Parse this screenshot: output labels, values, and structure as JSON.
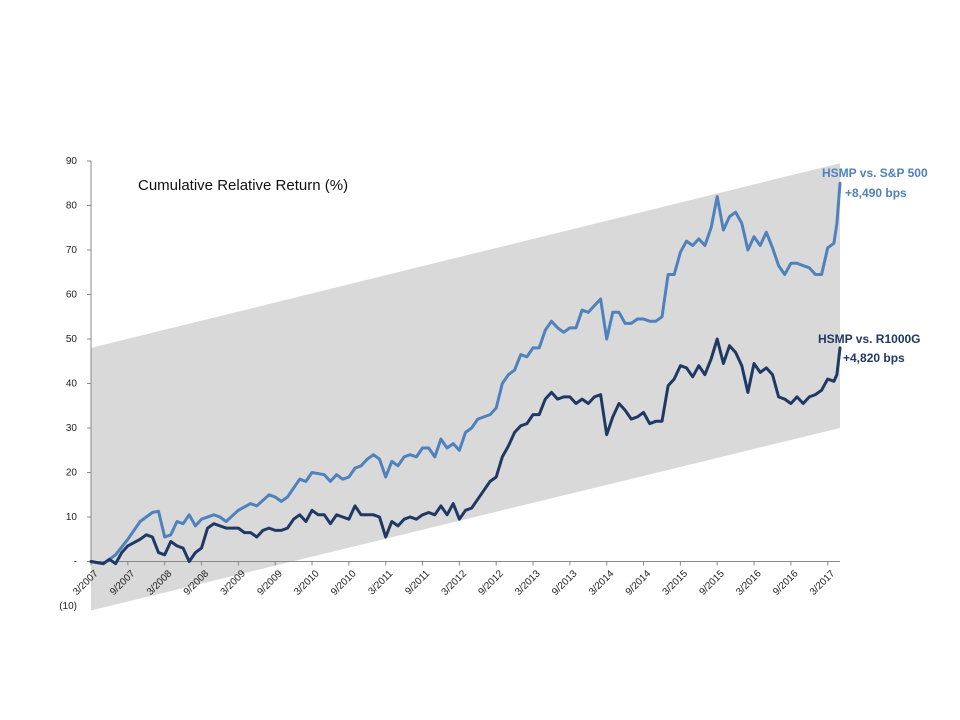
{
  "chart_data": {
    "type": "line",
    "title": "Cumulative Relative Return (%)",
    "xlabel": "",
    "ylabel": "",
    "ylim": [
      -10,
      90
    ],
    "y_ticks": [
      {
        "value": 90,
        "label": "90"
      },
      {
        "value": 80,
        "label": "80"
      },
      {
        "value": 70,
        "label": "70"
      },
      {
        "value": 60,
        "label": "60"
      },
      {
        "value": 50,
        "label": "50"
      },
      {
        "value": 40,
        "label": "40"
      },
      {
        "value": 30,
        "label": "30"
      },
      {
        "value": 20,
        "label": "20"
      },
      {
        "value": 10,
        "label": "10"
      },
      {
        "value": 0,
        "label": "-"
      },
      {
        "value": -10,
        "label": "(10)"
      }
    ],
    "x_range": [
      "3/2007",
      "5/2017"
    ],
    "x_ticks": [
      {
        "date": "3/2007",
        "label": "3/2007"
      },
      {
        "date": "9/2007",
        "label": "9/2007"
      },
      {
        "date": "3/2008",
        "label": "3/2008"
      },
      {
        "date": "9/2008",
        "label": "9/2008"
      },
      {
        "date": "3/2009",
        "label": "3/2009"
      },
      {
        "date": "9/2009",
        "label": "9/2009"
      },
      {
        "date": "3/2010",
        "label": "3/2010"
      },
      {
        "date": "9/2010",
        "label": "9/2010"
      },
      {
        "date": "3/2011",
        "label": "3/2011"
      },
      {
        "date": "9/2011",
        "label": "9/2011"
      },
      {
        "date": "3/2012",
        "label": "3/2012"
      },
      {
        "date": "9/2012",
        "label": "9/2012"
      },
      {
        "date": "3/2013",
        "label": "3/2013"
      },
      {
        "date": "9/2013",
        "label": "9/2013"
      },
      {
        "date": "3/2014",
        "label": "3/2014"
      },
      {
        "date": "9/2014",
        "label": "9/2014"
      },
      {
        "date": "3/2015",
        "label": "3/2015"
      },
      {
        "date": "9/2015",
        "label": "9/2015"
      },
      {
        "date": "3/2016",
        "label": "3/2016"
      },
      {
        "date": "9/2016",
        "label": "9/2016"
      },
      {
        "date": "3/2017",
        "label": "3/2017"
      }
    ],
    "band": {
      "upper": [
        {
          "date": "3/2007",
          "value": 48
        },
        {
          "date": "5/2017",
          "value": 89.5
        }
      ],
      "lower": [
        {
          "date": "3/2007",
          "value": -11
        },
        {
          "date": "5/2017",
          "value": 30
        }
      ],
      "color": "#d9d9d9"
    },
    "series": [
      {
        "name": "HSMP vs. S&P 500",
        "annotation": "+8,490 bps",
        "color": "#4f81bd",
        "points": [
          [
            "3/2007",
            0
          ],
          [
            "5/2007",
            -0.5
          ],
          [
            "7/2007",
            1.5
          ],
          [
            "9/2007",
            5
          ],
          [
            "11/2007",
            9
          ],
          [
            "1/2008",
            11
          ],
          [
            "2/2008",
            11.3
          ],
          [
            "3/2008",
            5.5
          ],
          [
            "4/2008",
            6
          ],
          [
            "5/2008",
            9
          ],
          [
            "6/2008",
            8.5
          ],
          [
            "7/2008",
            10.5
          ],
          [
            "8/2008",
            8
          ],
          [
            "9/2008",
            9.5
          ],
          [
            "11/2008",
            10.5
          ],
          [
            "12/2008",
            10
          ],
          [
            "1/2009",
            9
          ],
          [
            "3/2009",
            11.5
          ],
          [
            "5/2009",
            13
          ],
          [
            "6/2009",
            12.5
          ],
          [
            "8/2009",
            15
          ],
          [
            "9/2009",
            14.5
          ],
          [
            "10/2009",
            13.5
          ],
          [
            "11/2009",
            14.5
          ],
          [
            "1/2010",
            18.5
          ],
          [
            "2/2010",
            18
          ],
          [
            "3/2010",
            20
          ],
          [
            "5/2010",
            19.5
          ],
          [
            "6/2010",
            18
          ],
          [
            "7/2010",
            19.5
          ],
          [
            "8/2010",
            18.5
          ],
          [
            "9/2010",
            19
          ],
          [
            "10/2010",
            21
          ],
          [
            "11/2010",
            21.5
          ],
          [
            "12/2010",
            23
          ],
          [
            "1/2011",
            24
          ],
          [
            "2/2011",
            23
          ],
          [
            "3/2011",
            19
          ],
          [
            "4/2011",
            22.5
          ],
          [
            "5/2011",
            21.5
          ],
          [
            "6/2011",
            23.5
          ],
          [
            "7/2011",
            24
          ],
          [
            "8/2011",
            23.5
          ],
          [
            "9/2011",
            25.5
          ],
          [
            "10/2011",
            25.5
          ],
          [
            "11/2011",
            23.5
          ],
          [
            "12/2011",
            27.5
          ],
          [
            "1/2012",
            25.5
          ],
          [
            "2/2012",
            26.5
          ],
          [
            "3/2012",
            25
          ],
          [
            "4/2012",
            29
          ],
          [
            "5/2012",
            30
          ],
          [
            "6/2012",
            32
          ],
          [
            "7/2012",
            32.5
          ],
          [
            "8/2012",
            33
          ],
          [
            "9/2012",
            34.5
          ],
          [
            "10/2012",
            40
          ],
          [
            "11/2012",
            42
          ],
          [
            "12/2012",
            43
          ],
          [
            "1/2013",
            46.5
          ],
          [
            "2/2013",
            46
          ],
          [
            "3/2013",
            48
          ],
          [
            "4/2013",
            48
          ],
          [
            "5/2013",
            52
          ],
          [
            "6/2013",
            54
          ],
          [
            "7/2013",
            52.5
          ],
          [
            "8/2013",
            51.5
          ],
          [
            "9/2013",
            52.5
          ],
          [
            "10/2013",
            52.5
          ],
          [
            "11/2013",
            56.5
          ],
          [
            "12/2013",
            56
          ],
          [
            "1/2014",
            57.5
          ],
          [
            "2/2014",
            59
          ],
          [
            "3/2014",
            50
          ],
          [
            "4/2014",
            56
          ],
          [
            "5/2014",
            56
          ],
          [
            "6/2014",
            53.5
          ],
          [
            "7/2014",
            53.5
          ],
          [
            "8/2014",
            54.5
          ],
          [
            "9/2014",
            54.5
          ],
          [
            "10/2014",
            54
          ],
          [
            "11/2014",
            54
          ],
          [
            "12/2014",
            55
          ],
          [
            "1/2015",
            64.5
          ],
          [
            "2/2015",
            64.5
          ],
          [
            "3/2015",
            69.5
          ],
          [
            "4/2015",
            72
          ],
          [
            "5/2015",
            71
          ],
          [
            "6/2015",
            72.5
          ],
          [
            "7/2015",
            71
          ],
          [
            "8/2015",
            75
          ],
          [
            "9/2015",
            82
          ],
          [
            "10/2015",
            74.5
          ],
          [
            "11/2015",
            77.5
          ],
          [
            "12/2015",
            78.5
          ],
          [
            "1/2016",
            76
          ],
          [
            "2/2016",
            70
          ],
          [
            "3/2016",
            73
          ],
          [
            "4/2016",
            71
          ],
          [
            "5/2016",
            74
          ],
          [
            "6/2016",
            70.5
          ],
          [
            "7/2016",
            66.5
          ],
          [
            "8/2016",
            64.5
          ],
          [
            "9/2016",
            67
          ],
          [
            "10/2016",
            67
          ],
          [
            "11/2016",
            66.5
          ],
          [
            "12/2016",
            66
          ],
          [
            "1/2017",
            64.5
          ],
          [
            "2/2017",
            64.5
          ],
          [
            "3/2017",
            70.5
          ],
          [
            "4/2017",
            71.5
          ],
          [
            "4.5/2017",
            76
          ],
          [
            "5/2017",
            85
          ]
        ]
      },
      {
        "name": "HSMP vs. R1000G",
        "annotation": "+4,820 bps",
        "color": "#1f3864",
        "points": [
          [
            "3/2007",
            0
          ],
          [
            "5/2007",
            -0.5
          ],
          [
            "6/2007",
            0.5
          ],
          [
            "7/2007",
            -0.5
          ],
          [
            "8/2007",
            2
          ],
          [
            "9/2007",
            3.5
          ],
          [
            "11/2007",
            5
          ],
          [
            "12/2007",
            6
          ],
          [
            "1/2008",
            5.5
          ],
          [
            "2/2008",
            2
          ],
          [
            "3/2008",
            1.5
          ],
          [
            "4/2008",
            4.5
          ],
          [
            "5/2008",
            3.5
          ],
          [
            "6/2008",
            3
          ],
          [
            "7/2008",
            0
          ],
          [
            "8/2008",
            2
          ],
          [
            "9/2008",
            3
          ],
          [
            "10/2008",
            7.5
          ],
          [
            "11/2008",
            8.5
          ],
          [
            "12/2008",
            8
          ],
          [
            "1/2009",
            7.5
          ],
          [
            "2/2009",
            7.5
          ],
          [
            "3/2009",
            7.5
          ],
          [
            "4/2009",
            6.5
          ],
          [
            "5/2009",
            6.5
          ],
          [
            "6/2009",
            5.5
          ],
          [
            "7/2009",
            7
          ],
          [
            "8/2009",
            7.5
          ],
          [
            "9/2009",
            7
          ],
          [
            "10/2009",
            7
          ],
          [
            "11/2009",
            7.5
          ],
          [
            "12/2009",
            9.5
          ],
          [
            "1/2010",
            10.5
          ],
          [
            "2/2010",
            9
          ],
          [
            "3/2010",
            11.5
          ],
          [
            "4/2010",
            10.5
          ],
          [
            "5/2010",
            10.5
          ],
          [
            "6/2010",
            8.5
          ],
          [
            "7/2010",
            10.5
          ],
          [
            "8/2010",
            10
          ],
          [
            "9/2010",
            9.5
          ],
          [
            "10/2010",
            12.5
          ],
          [
            "11/2010",
            10.5
          ],
          [
            "12/2010",
            10.5
          ],
          [
            "1/2011",
            10.5
          ],
          [
            "2/2011",
            10
          ],
          [
            "3/2011",
            5.5
          ],
          [
            "4/2011",
            9
          ],
          [
            "5/2011",
            8
          ],
          [
            "6/2011",
            9.5
          ],
          [
            "7/2011",
            10
          ],
          [
            "8/2011",
            9.5
          ],
          [
            "9/2011",
            10.5
          ],
          [
            "10/2011",
            11
          ],
          [
            "11/2011",
            10.5
          ],
          [
            "12/2011",
            12.5
          ],
          [
            "1/2012",
            10.5
          ],
          [
            "2/2012",
            13
          ],
          [
            "3/2012",
            9.5
          ],
          [
            "4/2012",
            11.5
          ],
          [
            "5/2012",
            12
          ],
          [
            "6/2012",
            14
          ],
          [
            "7/2012",
            16
          ],
          [
            "8/2012",
            18
          ],
          [
            "9/2012",
            19
          ],
          [
            "10/2012",
            23.5
          ],
          [
            "11/2012",
            26
          ],
          [
            "12/2012",
            29
          ],
          [
            "1/2013",
            30.5
          ],
          [
            "2/2013",
            31
          ],
          [
            "3/2013",
            33
          ],
          [
            "4/2013",
            33
          ],
          [
            "5/2013",
            36.5
          ],
          [
            "6/2013",
            38
          ],
          [
            "7/2013",
            36.5
          ],
          [
            "8/2013",
            37
          ],
          [
            "9/2013",
            37
          ],
          [
            "10/2013",
            35.5
          ],
          [
            "11/2013",
            36.5
          ],
          [
            "12/2013",
            35.5
          ],
          [
            "1/2014",
            37
          ],
          [
            "2/2014",
            37.5
          ],
          [
            "3/2014",
            28.5
          ],
          [
            "4/2014",
            32.5
          ],
          [
            "5/2014",
            35.5
          ],
          [
            "6/2014",
            34
          ],
          [
            "7/2014",
            32
          ],
          [
            "8/2014",
            32.5
          ],
          [
            "9/2014",
            33.5
          ],
          [
            "10/2014",
            31
          ],
          [
            "11/2014",
            31.5
          ],
          [
            "12/2014",
            31.5
          ],
          [
            "1/2015",
            39.5
          ],
          [
            "2/2015",
            41
          ],
          [
            "3/2015",
            44
          ],
          [
            "4/2015",
            43.5
          ],
          [
            "5/2015",
            41.5
          ],
          [
            "6/2015",
            44
          ],
          [
            "7/2015",
            42
          ],
          [
            "8/2015",
            45.5
          ],
          [
            "9/2015",
            50
          ],
          [
            "10/2015",
            44.5
          ],
          [
            "11/2015",
            48.5
          ],
          [
            "12/2015",
            47
          ],
          [
            "1/2016",
            44
          ],
          [
            "2/2016",
            38
          ],
          [
            "3/2016",
            44.5
          ],
          [
            "4/2016",
            42.5
          ],
          [
            "5/2016",
            43.5
          ],
          [
            "6/2016",
            42
          ],
          [
            "7/2016",
            37
          ],
          [
            "8/2016",
            36.5
          ],
          [
            "9/2016",
            35.5
          ],
          [
            "10/2016",
            37
          ],
          [
            "11/2016",
            35.5
          ],
          [
            "12/2016",
            37
          ],
          [
            "1/2017",
            37.5
          ],
          [
            "2/2017",
            38.5
          ],
          [
            "3/2017",
            41
          ],
          [
            "4/2017",
            40.5
          ],
          [
            "4.5/2017",
            42
          ],
          [
            "5/2017",
            48
          ]
        ]
      }
    ],
    "grid": false,
    "legend": "none"
  }
}
